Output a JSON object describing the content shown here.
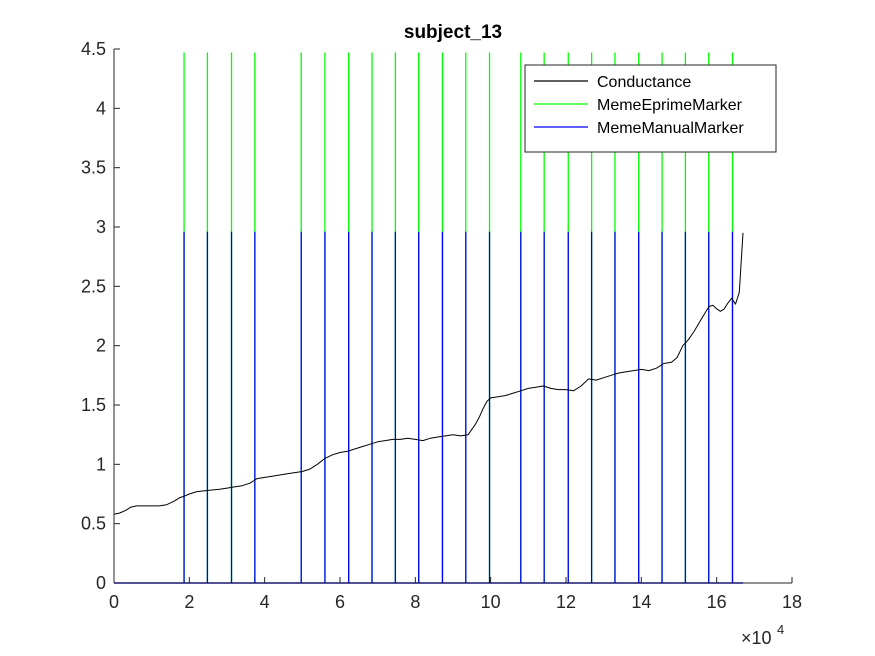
{
  "chart_data": {
    "type": "line",
    "title": "subject_13",
    "xlim": [
      0,
      180000
    ],
    "ylim": [
      0,
      4.5
    ],
    "x_ticks": [
      0,
      2,
      4,
      6,
      8,
      10,
      12,
      14,
      16,
      18
    ],
    "x_tick_labels": [
      "0",
      "2",
      "4",
      "6",
      "8",
      "10",
      "12",
      "14",
      "16",
      "18"
    ],
    "x_exponent_base": "×10",
    "x_exponent_power": "4",
    "y_ticks": [
      0,
      0.5,
      1,
      1.5,
      2,
      2.5,
      3,
      3.5,
      4,
      4.5
    ],
    "y_tick_labels": [
      "0",
      "0.5",
      "1",
      "1.5",
      "2",
      "2.5",
      "3",
      "3.5",
      "4",
      "4.5"
    ],
    "legend_position": "top-right",
    "grid": false,
    "series": [
      {
        "name": "Conductance",
        "color": "#000000",
        "x": [
          0,
          1500,
          3000,
          4500,
          6000,
          9000,
          12000,
          14000,
          16000,
          17500,
          18500,
          20000,
          22000,
          25000,
          28000,
          30000,
          32000,
          34000,
          36000,
          38000,
          40000,
          42000,
          44000,
          46000,
          48000,
          50000,
          52000,
          54000,
          56000,
          58000,
          60000,
          62000,
          64000,
          66000,
          68000,
          70000,
          72000,
          74000,
          76000,
          78000,
          80000,
          82000,
          84000,
          86000,
          88000,
          90000,
          92000,
          94000,
          96000,
          97000,
          98000,
          99000,
          100000,
          102000,
          104000,
          106000,
          108000,
          110000,
          112000,
          114000,
          116000,
          118000,
          120000,
          122000,
          124000,
          126000,
          128000,
          130000,
          132000,
          134000,
          136000,
          138000,
          140000,
          142000,
          144000,
          146000,
          148000,
          149500,
          151000,
          152500,
          154000,
          155500,
          157000,
          158000,
          159000,
          160000,
          161000,
          162000,
          163000,
          164000,
          165000,
          166000,
          167000
        ],
        "y": [
          0.58,
          0.59,
          0.61,
          0.64,
          0.65,
          0.65,
          0.65,
          0.66,
          0.69,
          0.72,
          0.73,
          0.75,
          0.77,
          0.78,
          0.79,
          0.8,
          0.81,
          0.82,
          0.84,
          0.88,
          0.89,
          0.9,
          0.91,
          0.92,
          0.93,
          0.94,
          0.96,
          1.0,
          1.05,
          1.08,
          1.1,
          1.11,
          1.13,
          1.15,
          1.17,
          1.19,
          1.2,
          1.21,
          1.21,
          1.22,
          1.21,
          1.2,
          1.22,
          1.23,
          1.24,
          1.25,
          1.24,
          1.25,
          1.34,
          1.4,
          1.47,
          1.53,
          1.56,
          1.57,
          1.58,
          1.6,
          1.62,
          1.64,
          1.65,
          1.66,
          1.64,
          1.63,
          1.63,
          1.62,
          1.66,
          1.72,
          1.71,
          1.73,
          1.75,
          1.77,
          1.78,
          1.79,
          1.8,
          1.79,
          1.81,
          1.85,
          1.86,
          1.9,
          2.0,
          2.05,
          2.12,
          2.2,
          2.28,
          2.33,
          2.34,
          2.31,
          2.29,
          2.31,
          2.36,
          2.4,
          2.35,
          2.45,
          2.95
        ]
      },
      {
        "name": "MemeEprimeMarker",
        "color": "#00ff00",
        "baseline": 0,
        "peak": 4.47,
        "x": [
          18600,
          24800,
          31200,
          37400,
          49700,
          56000,
          62300,
          68500,
          74700,
          80900,
          87200,
          93400,
          99700,
          108000,
          114200,
          120600,
          126800,
          133000,
          139300,
          145500,
          151700,
          157900,
          164200
        ]
      },
      {
        "name": "MemeManualMarker",
        "color": "#0000ff",
        "baseline": 0,
        "peak": 2.96,
        "x": [
          18600,
          24800,
          31200,
          37400,
          49700,
          56000,
          62300,
          68500,
          74700,
          80900,
          87200,
          93400,
          99700,
          108000,
          114200,
          120600,
          126800,
          133000,
          139300,
          145500,
          151700,
          157900,
          164200
        ],
        "end_x": 167000
      }
    ]
  }
}
